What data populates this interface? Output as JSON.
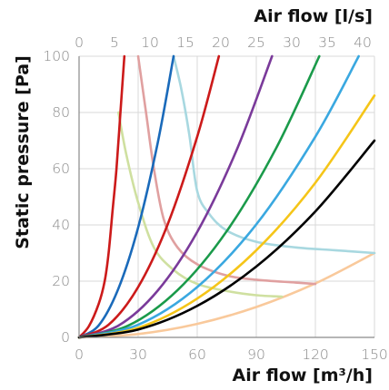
{
  "chart_data": {
    "type": "line",
    "xlabel": "Air flow [m³/h]",
    "x2label": "Air flow [l/s]",
    "ylabel": "Static pressure [Pa]",
    "xlim": [
      0,
      150
    ],
    "x2lim": [
      0,
      41.67
    ],
    "ylim": [
      0,
      100
    ],
    "x_ticks": [
      0,
      30,
      60,
      90,
      120,
      150
    ],
    "x2_ticks": [
      0,
      5,
      10,
      15,
      20,
      25,
      30,
      35,
      40
    ],
    "y_ticks": [
      0,
      20,
      40,
      60,
      80,
      100
    ],
    "x_tick_labels": [
      "0",
      "30",
      "60",
      "90",
      "120",
      "150"
    ],
    "x2_tick_labels": [
      "0",
      "5",
      "10",
      "15",
      "20",
      "25",
      "30",
      "35",
      "40"
    ],
    "y_tick_labels": [
      "0",
      "20",
      "40",
      "60",
      "80",
      "100"
    ],
    "grid": true,
    "series": [
      {
        "color": "#f9c99b",
        "x": [
          0,
          30,
          60,
          90,
          120,
          150
        ],
        "y": [
          0,
          1.2,
          4.8,
          10.8,
          19.2,
          30
        ]
      },
      {
        "color": "#a8d8e0",
        "x": [
          48,
          52,
          56,
          60,
          66,
          75,
          90,
          110,
          130,
          150
        ],
        "y": [
          100,
          88,
          72,
          52,
          44,
          38,
          34,
          32,
          31,
          30
        ]
      },
      {
        "color": "#e0a0a0",
        "x": [
          30,
          34,
          38,
          43,
          50,
          60,
          75,
          90,
          110,
          120
        ],
        "y": [
          100,
          80,
          60,
          42,
          32,
          26,
          22,
          20.5,
          19.5,
          19
        ]
      },
      {
        "color": "#cfe0a0",
        "x": [
          20,
          24,
          30,
          38,
          48,
          60,
          75,
          90,
          103
        ],
        "y": [
          80,
          65,
          48,
          32,
          24,
          19,
          16.5,
          15,
          14.5
        ]
      },
      {
        "color": "#cc1a1a",
        "x": [
          0,
          5,
          10,
          13,
          15,
          17,
          19,
          21,
          23
        ],
        "y": [
          0,
          4,
          12,
          20,
          30,
          45,
          60,
          80,
          100
        ]
      },
      {
        "color": "#1a6aba",
        "x": [
          0,
          10,
          20,
          30,
          40,
          48
        ],
        "y": [
          0,
          4.3,
          17.4,
          39.1,
          69.4,
          100
        ]
      },
      {
        "color": "#cc1a1a",
        "x": [
          0,
          15,
          30,
          45,
          60,
          71
        ],
        "y": [
          0,
          4.5,
          17.9,
          40.2,
          71.4,
          100
        ]
      },
      {
        "color": "#7a3a9a",
        "x": [
          0,
          20,
          40,
          60,
          80,
          98
        ],
        "y": [
          0,
          4.2,
          16.7,
          37.5,
          66.6,
          100
        ]
      },
      {
        "color": "#1a9a4a",
        "x": [
          0,
          25,
          50,
          75,
          100,
          122
        ],
        "y": [
          0,
          4.2,
          16.8,
          37.8,
          67.2,
          100
        ]
      },
      {
        "color": "#3aa8e0",
        "x": [
          0,
          30,
          60,
          90,
          120,
          142
        ],
        "y": [
          0,
          4.5,
          17.9,
          40.2,
          71.4,
          100
        ]
      },
      {
        "color": "#f5c518",
        "x": [
          0,
          30,
          60,
          90,
          120,
          150
        ],
        "y": [
          0,
          3.4,
          13.8,
          31,
          55,
          86
        ]
      },
      {
        "color": "#000000",
        "x": [
          0,
          30,
          60,
          90,
          120,
          150
        ],
        "y": [
          0,
          2.8,
          11.2,
          25.2,
          44.8,
          70
        ]
      }
    ]
  }
}
